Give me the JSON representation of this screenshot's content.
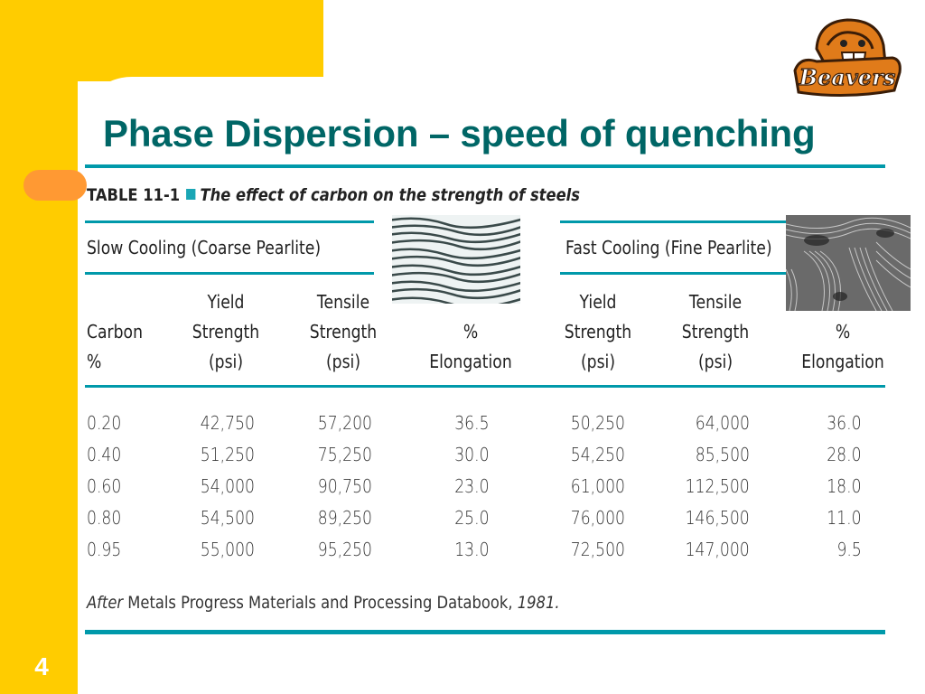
{
  "slide": {
    "title": "Phase Dispersion – speed of quenching",
    "number": "4",
    "logo_text": "Beavers"
  },
  "table": {
    "label": "TABLE 11-1",
    "caption": "The effect of carbon on the strength of steels",
    "groups": {
      "slow": "Slow Cooling (Coarse Pearlite)",
      "fast": "Fast Cooling (Fine Pearlite)"
    },
    "headers": {
      "carbon": [
        "Carbon",
        "%"
      ],
      "yield": [
        "Yield",
        "Strength",
        "(psi)"
      ],
      "tensile": [
        "Tensile",
        "Strength",
        "(psi)"
      ],
      "elong": [
        "%",
        "Elongation"
      ]
    },
    "rows": [
      [
        "0.20",
        "42,750",
        "57,200",
        "36.5",
        "50,250",
        "64,000",
        "36.0"
      ],
      [
        "0.40",
        "51,250",
        "75,250",
        "30.0",
        "54,250",
        "85,500",
        "28.0"
      ],
      [
        "0.60",
        "54,000",
        "90,750",
        "23.0",
        "61,000",
        "112,500",
        "18.0"
      ],
      [
        "0.80",
        "54,500",
        "89,250",
        "25.0",
        "76,000",
        "146,500",
        "11.0"
      ],
      [
        "0.95",
        "55,000",
        "95,250",
        "13.0",
        "72,500",
        "147,000",
        "9.5"
      ]
    ],
    "source_after": "After",
    "source_text": " Metals Progress Materials and Processing Databook, ",
    "source_year": "1981."
  },
  "colors": {
    "yellow": "#FFCC00",
    "orange": "#FF9933",
    "title": "#006666",
    "rule": "#0099AA"
  },
  "images": {
    "coarse": "coarse-pearlite-micrograph",
    "fine": "fine-pearlite-micrograph"
  }
}
